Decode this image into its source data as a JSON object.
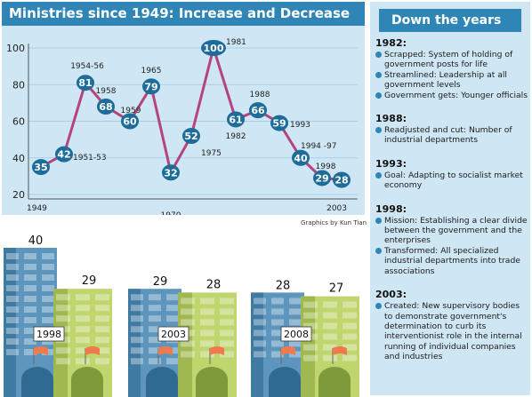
{
  "chart_title": "Ministries since 1949: Increase and Decrease",
  "credit": "Graphics by Kun Tian",
  "chart_data": [
    {
      "type": "line",
      "x": [
        "1949",
        "1951-53",
        "1954-56",
        "1958",
        "1959",
        "1965",
        "1970",
        "1975",
        "1981",
        "1982",
        "1988",
        "1993",
        "1994 -97",
        "1998",
        "2003"
      ],
      "values": [
        35,
        42,
        81,
        68,
        60,
        79,
        32,
        52,
        100,
        61,
        66,
        59,
        40,
        29,
        28
      ],
      "point_labels": [
        "35",
        "42",
        "81",
        "68",
        "60",
        "79",
        "32",
        "52",
        "100",
        "61",
        "66",
        "59",
        "40",
        "29",
        "28"
      ],
      "yticks": [
        "100",
        "80",
        "60",
        "40",
        "20"
      ],
      "ylim": [
        20,
        100
      ],
      "x_axis_start": "1949",
      "x_axis_end": "2003",
      "grid": true,
      "colors": {
        "line": "#b5447e",
        "marker": "#1e6c99",
        "marker_text": "#ffffff"
      }
    },
    {
      "type": "bar",
      "groups": [
        {
          "year": "1998",
          "values": [
            40,
            29
          ],
          "labels": [
            "40",
            "29"
          ]
        },
        {
          "year": "2003",
          "values": [
            29,
            28
          ],
          "labels": [
            "29",
            "28"
          ]
        },
        {
          "year": "2008",
          "values": [
            28,
            27
          ],
          "labels": [
            "28",
            "27"
          ]
        }
      ],
      "colors": {
        "blue_building": "#5d95bd",
        "green_building": "#bfd56e",
        "flag": "#ee7a4e"
      }
    }
  ],
  "sidebar": {
    "title": "Down the years",
    "events": [
      {
        "year": "1982:",
        "items": [
          "Scrapped: System of holding of government posts for life",
          "Streamlined: Leadership at all government levels",
          "Government gets: Younger officials"
        ]
      },
      {
        "year": "1988:",
        "items": [
          "Readjusted and cut: Number of industrial departments"
        ]
      },
      {
        "year": "1993:",
        "items": [
          "Goal: Adapting to socialist market economy"
        ]
      },
      {
        "year": "1998:",
        "items": [
          "Mission: Establishing a clear divide between the government and the enterprises",
          "Transformed: All specialized industrial departments into trade associations"
        ]
      },
      {
        "year": "2003:",
        "items": [
          "Created: New supervisory bodies to demonstrate government's determination to curb its interventionist role in the internal running of individual companies and industries"
        ]
      }
    ]
  }
}
